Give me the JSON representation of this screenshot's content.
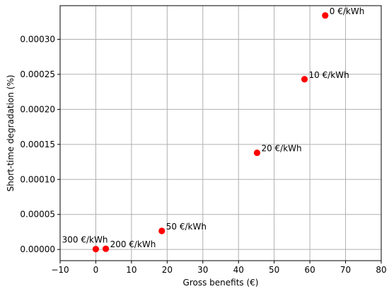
{
  "chart_data": {
    "type": "scatter",
    "title": "",
    "xlabel": "Gross benefits (€)",
    "ylabel": "Short-time degradation (%)",
    "xlim": [
      -10,
      80
    ],
    "ylim": [
      -1.6e-05,
      0.000348
    ],
    "grid": true,
    "marker_color": "#ff0000",
    "x_ticks": [
      {
        "value": -10,
        "label": "−10"
      },
      {
        "value": 0,
        "label": "0"
      },
      {
        "value": 10,
        "label": "10"
      },
      {
        "value": 20,
        "label": "20"
      },
      {
        "value": 30,
        "label": "30"
      },
      {
        "value": 40,
        "label": "40"
      },
      {
        "value": 50,
        "label": "50"
      },
      {
        "value": 60,
        "label": "60"
      },
      {
        "value": 70,
        "label": "70"
      },
      {
        "value": 80,
        "label": "80"
      }
    ],
    "y_ticks": [
      {
        "value": 0.0,
        "label": "0.00000"
      },
      {
        "value": 5e-05,
        "label": "0.00005"
      },
      {
        "value": 0.0001,
        "label": "0.00010"
      },
      {
        "value": 0.00015,
        "label": "0.00015"
      },
      {
        "value": 0.0002,
        "label": "0.00020"
      },
      {
        "value": 0.00025,
        "label": "0.00025"
      },
      {
        "value": 0.0003,
        "label": "0.00030"
      }
    ],
    "points": [
      {
        "x": 64.3,
        "y": 0.000334,
        "label": "0 €/kWh",
        "label_side": "right"
      },
      {
        "x": 58.5,
        "y": 0.000243,
        "label": "10 €/kWh",
        "label_side": "right"
      },
      {
        "x": 45.2,
        "y": 0.000138,
        "label": "20 €/kWh",
        "label_side": "right"
      },
      {
        "x": 18.5,
        "y": 2.65e-05,
        "label": "50 €/kWh",
        "label_side": "right"
      },
      {
        "x": 2.8,
        "y": 1e-06,
        "label": "200 €/kWh",
        "label_side": "right"
      },
      {
        "x": 0.0,
        "y": 5e-07,
        "label": "300 €/kWh",
        "label_side": "above-left"
      }
    ]
  }
}
